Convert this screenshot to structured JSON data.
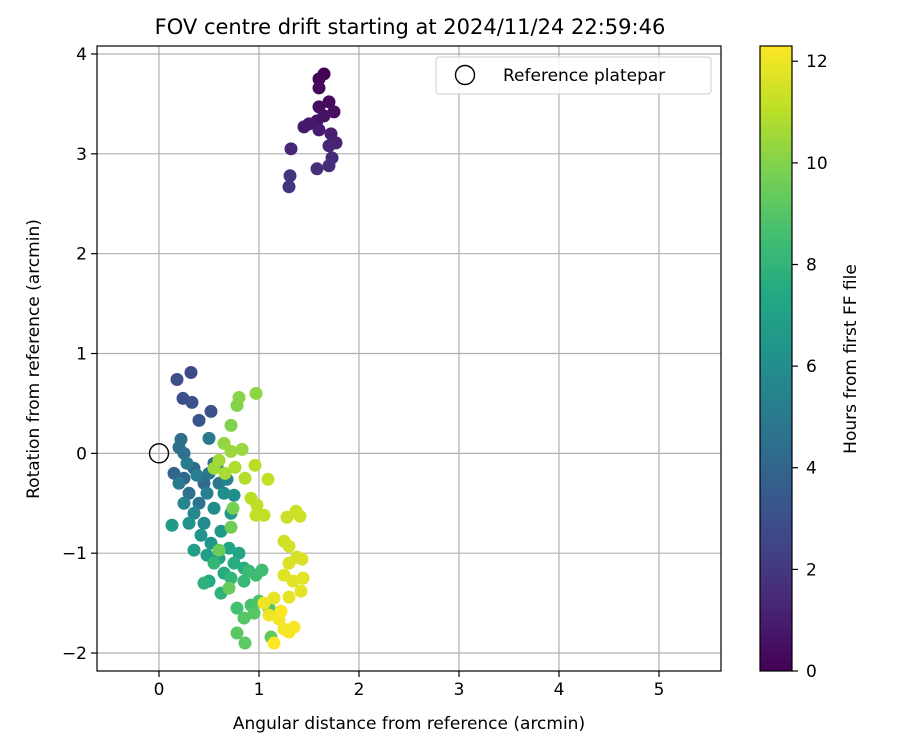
{
  "chart_data": {
    "type": "scatter",
    "title": "FOV centre drift starting at 2024/11/24 22:59:46",
    "xlabel": "Angular distance from reference (arcmin)",
    "ylabel": "Rotation from reference (arcmin)",
    "xlim": [
      -0.62,
      5.62
    ],
    "ylim": [
      -2.18,
      4.08
    ],
    "xticks": [
      0,
      1,
      2,
      3,
      4,
      5
    ],
    "yticks": [
      -2,
      -1,
      0,
      1,
      2,
      3,
      4
    ],
    "grid": true,
    "legend": {
      "position": "top-right",
      "entries": [
        "Reference platepar"
      ]
    },
    "reference_point": {
      "name": "Reference platepar",
      "x": 0,
      "y": 0
    },
    "colorbar": {
      "label": "Hours from first FF file",
      "min": 0,
      "max": 12.3,
      "ticks": [
        0,
        2,
        4,
        6,
        8,
        10,
        12
      ],
      "colormap": "viridis"
    },
    "series": [
      {
        "points": [
          [
            1.65,
            3.8,
            0.0
          ],
          [
            1.6,
            3.75,
            0.1
          ],
          [
            1.6,
            3.66,
            0.2
          ],
          [
            1.7,
            3.52,
            0.3
          ],
          [
            1.6,
            3.47,
            0.4
          ],
          [
            1.75,
            3.42,
            0.5
          ],
          [
            1.65,
            3.38,
            0.6
          ],
          [
            1.58,
            3.33,
            0.7
          ],
          [
            1.5,
            3.3,
            0.8
          ],
          [
            1.45,
            3.27,
            0.9
          ],
          [
            1.6,
            3.24,
            1.0
          ],
          [
            1.72,
            3.2,
            1.1
          ],
          [
            1.77,
            3.11,
            1.2
          ],
          [
            1.32,
            3.05,
            1.3
          ],
          [
            1.7,
            3.08,
            1.4
          ],
          [
            1.73,
            2.96,
            1.5
          ],
          [
            1.7,
            2.88,
            1.6
          ],
          [
            1.58,
            2.85,
            1.7
          ],
          [
            1.31,
            2.78,
            1.8
          ],
          [
            1.3,
            2.67,
            1.9
          ],
          [
            0.32,
            0.81,
            2.8
          ],
          [
            0.18,
            0.74,
            2.9
          ],
          [
            0.24,
            0.55,
            3.0
          ],
          [
            0.33,
            0.51,
            3.1
          ],
          [
            0.52,
            0.42,
            3.2
          ],
          [
            0.4,
            0.33,
            3.3
          ],
          [
            0.22,
            0.14,
            4.4
          ],
          [
            0.2,
            0.06,
            4.5
          ],
          [
            0.25,
            0.0,
            4.6
          ],
          [
            0.5,
            0.15,
            5.0
          ],
          [
            0.15,
            -0.2,
            4.0
          ],
          [
            0.25,
            -0.25,
            4.1
          ],
          [
            0.35,
            -0.15,
            4.2
          ],
          [
            0.45,
            -0.3,
            4.3
          ],
          [
            0.55,
            -0.1,
            4.4
          ],
          [
            0.3,
            -0.4,
            4.6
          ],
          [
            0.4,
            -0.5,
            4.7
          ],
          [
            0.5,
            -0.2,
            4.8
          ],
          [
            0.6,
            -0.3,
            4.9
          ],
          [
            0.2,
            -0.3,
            5.0
          ],
          [
            0.28,
            -0.1,
            5.1
          ],
          [
            0.38,
            -0.22,
            5.2
          ],
          [
            0.48,
            -0.4,
            5.3
          ],
          [
            0.58,
            -0.12,
            5.4
          ],
          [
            0.68,
            -0.26,
            5.5
          ],
          [
            0.25,
            -0.5,
            5.6
          ],
          [
            0.35,
            -0.6,
            5.7
          ],
          [
            0.45,
            -0.7,
            5.8
          ],
          [
            0.55,
            -0.55,
            5.9
          ],
          [
            0.65,
            -0.4,
            6.0
          ],
          [
            0.75,
            -0.42,
            6.1
          ],
          [
            0.3,
            -0.7,
            6.2
          ],
          [
            0.42,
            -0.82,
            6.3
          ],
          [
            0.52,
            -0.9,
            6.4
          ],
          [
            0.62,
            -0.78,
            6.5
          ],
          [
            0.72,
            -0.6,
            6.6
          ],
          [
            0.13,
            -0.72,
            6.7
          ],
          [
            0.35,
            -0.97,
            6.8
          ],
          [
            0.48,
            -1.02,
            6.9
          ],
          [
            0.6,
            -1.05,
            7.0
          ],
          [
            0.7,
            -0.95,
            7.1
          ],
          [
            0.8,
            -1.0,
            7.2
          ],
          [
            0.5,
            -1.28,
            7.4
          ],
          [
            0.65,
            -1.2,
            7.5
          ],
          [
            0.75,
            -1.1,
            7.6
          ],
          [
            0.85,
            -1.15,
            7.7
          ],
          [
            0.45,
            -1.3,
            7.8
          ],
          [
            0.62,
            -1.4,
            7.9
          ],
          [
            0.72,
            -1.25,
            8.0
          ],
          [
            0.55,
            -1.1,
            8.1
          ],
          [
            0.85,
            -1.28,
            8.2
          ],
          [
            0.9,
            -1.18,
            8.3
          ],
          [
            0.97,
            -1.22,
            8.4
          ],
          [
            1.03,
            -1.17,
            8.5
          ],
          [
            0.78,
            -1.55,
            8.6
          ],
          [
            0.92,
            -1.52,
            8.7
          ],
          [
            1.0,
            -1.48,
            8.8
          ],
          [
            1.1,
            -1.55,
            8.9
          ],
          [
            0.85,
            -1.65,
            9.0
          ],
          [
            0.95,
            -1.6,
            9.0
          ],
          [
            0.78,
            -1.8,
            9.1
          ],
          [
            0.86,
            -1.9,
            9.2
          ],
          [
            1.12,
            -1.84,
            9.3
          ],
          [
            0.7,
            -1.35,
            9.4
          ],
          [
            0.6,
            -0.97,
            9.5
          ],
          [
            0.72,
            -0.74,
            9.6
          ],
          [
            0.74,
            -0.55,
            9.8
          ],
          [
            0.72,
            0.28,
            9.9
          ],
          [
            0.78,
            0.48,
            10.0
          ],
          [
            0.8,
            0.56,
            10.1
          ],
          [
            0.97,
            0.6,
            10.2
          ],
          [
            0.65,
            0.1,
            10.3
          ],
          [
            0.72,
            0.02,
            10.4
          ],
          [
            0.83,
            0.04,
            10.4
          ],
          [
            0.55,
            -0.15,
            10.5
          ],
          [
            0.6,
            -0.07,
            10.6
          ],
          [
            0.66,
            -0.2,
            10.7
          ],
          [
            0.76,
            -0.14,
            10.8
          ],
          [
            0.86,
            -0.25,
            10.9
          ],
          [
            0.96,
            -0.12,
            11.0
          ],
          [
            0.92,
            -0.45,
            11.0
          ],
          [
            0.98,
            -0.52,
            11.1
          ],
          [
            1.05,
            -0.62,
            11.2
          ],
          [
            0.97,
            -0.62,
            11.2
          ],
          [
            1.09,
            -0.26,
            11.2
          ],
          [
            1.28,
            -0.64,
            11.3
          ],
          [
            1.37,
            -0.58,
            11.3
          ],
          [
            1.41,
            -0.63,
            11.4
          ],
          [
            1.25,
            -0.88,
            11.4
          ],
          [
            1.3,
            -0.93,
            11.5
          ],
          [
            1.38,
            -1.04,
            11.5
          ],
          [
            1.43,
            -1.06,
            11.6
          ],
          [
            1.3,
            -1.1,
            11.6
          ],
          [
            1.25,
            -1.22,
            11.7
          ],
          [
            1.34,
            -1.28,
            11.7
          ],
          [
            1.44,
            -1.25,
            11.8
          ],
          [
            1.42,
            -1.38,
            11.8
          ],
          [
            1.3,
            -1.44,
            11.9
          ],
          [
            1.15,
            -1.45,
            11.9
          ],
          [
            1.05,
            -1.5,
            12.0
          ],
          [
            1.1,
            -1.62,
            12.0
          ],
          [
            1.2,
            -1.66,
            12.1
          ],
          [
            1.25,
            -1.76,
            12.1
          ],
          [
            1.35,
            -1.74,
            12.2
          ],
          [
            1.3,
            -1.79,
            12.2
          ],
          [
            1.15,
            -1.9,
            12.3
          ],
          [
            1.22,
            -1.58,
            12.3
          ]
        ]
      }
    ]
  }
}
